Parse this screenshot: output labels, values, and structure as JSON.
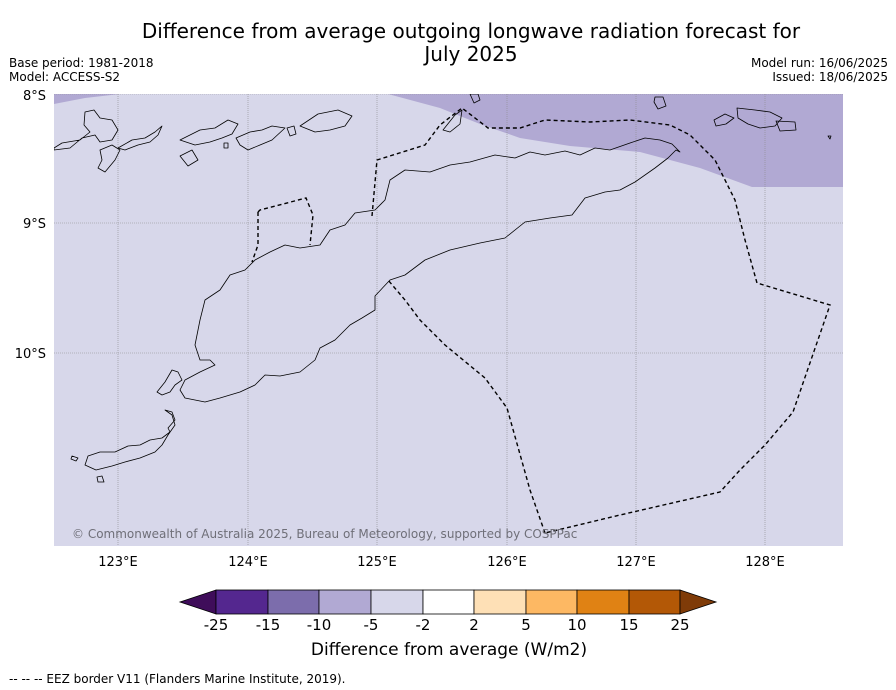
{
  "title_line1": "Difference from average outgoing longwave radiation forecast for",
  "title_line2": "July 2025",
  "base_period": "Base period: 1981-2018",
  "model": "Model: ACCESS-S2",
  "model_run": "Model run: 16/06/2025",
  "issued": "Issued: 18/06/2025",
  "copyright": "© Commonwealth of Australia 2025, Bureau of Meteorology, supported by COSPPac",
  "footer": "--  --  -- EEZ border V11 (Flanders Marine Institute, 2019).",
  "lat_labels": [
    "8°S",
    "9°S",
    "10°S"
  ],
  "lon_labels": [
    "123°E",
    "124°E",
    "125°E",
    "126°E",
    "127°E",
    "128°E"
  ],
  "colorbar": {
    "title": "Difference from average (W/m2)",
    "tick_labels": [
      "-25",
      "-15",
      "-10",
      "-5",
      "-2",
      "2",
      "5",
      "10",
      "15",
      "25"
    ],
    "colors": [
      "#3f0d5a",
      "#54278f",
      "#7c6dac",
      "#b1a9d3",
      "#d7d7ea",
      "#ffffff",
      "#fee0b6",
      "#fdb863",
      "#e08214",
      "#b35806",
      "#7f3b08"
    ]
  },
  "map_colors": {
    "background": "#d7d7ea",
    "anomaly_low": "#b1a9d3",
    "land_outline": "#000000",
    "gridline": "#8c8c8c"
  }
}
